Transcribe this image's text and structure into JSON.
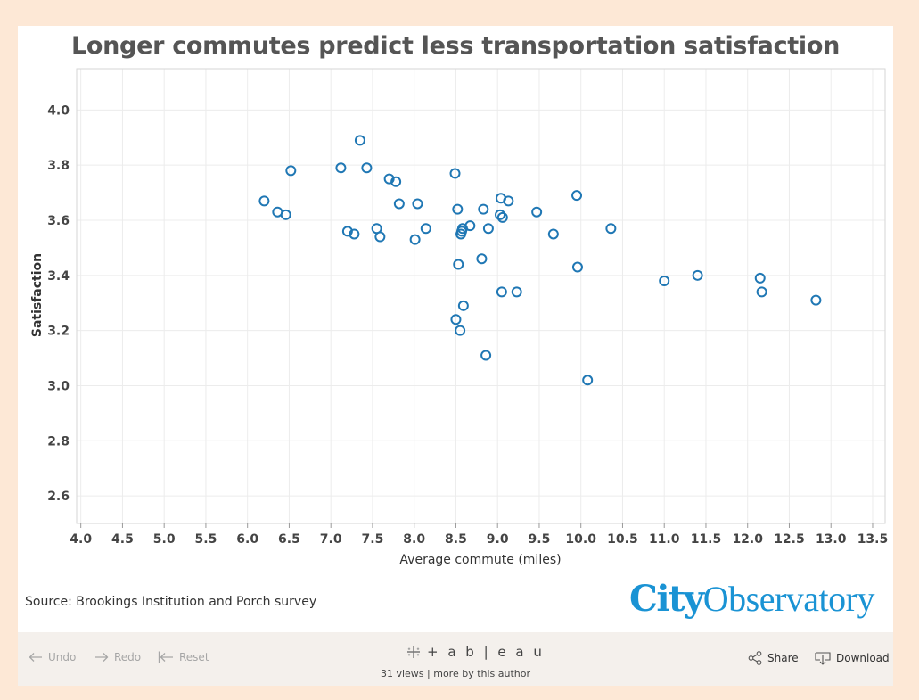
{
  "chart_data": {
    "type": "scatter",
    "title": "Longer commutes predict less transportation satisfaction",
    "xlabel": "Average commute (miles)",
    "ylabel": "Satisfaction",
    "xlim": [
      3.95,
      13.65
    ],
    "ylim": [
      2.5,
      4.15
    ],
    "x_ticks": [
      "4.0",
      "4.5",
      "5.0",
      "5.5",
      "6.0",
      "6.5",
      "7.0",
      "7.5",
      "8.0",
      "8.5",
      "9.0",
      "9.5",
      "10.0",
      "10.5",
      "11.0",
      "11.5",
      "12.0",
      "12.5",
      "13.0",
      "13.5"
    ],
    "y_ticks": [
      "4.0",
      "3.8",
      "3.6",
      "3.4",
      "3.2",
      "3.0",
      "2.8",
      "2.6"
    ],
    "grid": true,
    "marker_color": "#1f77b4",
    "points": [
      {
        "x": 6.2,
        "y": 3.67
      },
      {
        "x": 6.36,
        "y": 3.63
      },
      {
        "x": 6.46,
        "y": 3.62
      },
      {
        "x": 6.52,
        "y": 3.78
      },
      {
        "x": 7.12,
        "y": 3.79
      },
      {
        "x": 7.2,
        "y": 3.56
      },
      {
        "x": 7.28,
        "y": 3.55
      },
      {
        "x": 7.35,
        "y": 3.89
      },
      {
        "x": 7.43,
        "y": 3.79
      },
      {
        "x": 7.55,
        "y": 3.57
      },
      {
        "x": 7.59,
        "y": 3.54
      },
      {
        "x": 7.7,
        "y": 3.75
      },
      {
        "x": 7.78,
        "y": 3.74
      },
      {
        "x": 7.82,
        "y": 3.66
      },
      {
        "x": 8.01,
        "y": 3.53
      },
      {
        "x": 8.04,
        "y": 3.66
      },
      {
        "x": 8.14,
        "y": 3.57
      },
      {
        "x": 8.49,
        "y": 3.77
      },
      {
        "x": 8.5,
        "y": 3.24
      },
      {
        "x": 8.52,
        "y": 3.64
      },
      {
        "x": 8.53,
        "y": 3.44
      },
      {
        "x": 8.55,
        "y": 3.2
      },
      {
        "x": 8.56,
        "y": 3.55
      },
      {
        "x": 8.57,
        "y": 3.56
      },
      {
        "x": 8.58,
        "y": 3.57
      },
      {
        "x": 8.59,
        "y": 3.29
      },
      {
        "x": 8.67,
        "y": 3.58
      },
      {
        "x": 8.81,
        "y": 3.46
      },
      {
        "x": 8.83,
        "y": 3.64
      },
      {
        "x": 8.86,
        "y": 3.11
      },
      {
        "x": 8.89,
        "y": 3.57
      },
      {
        "x": 9.03,
        "y": 3.62
      },
      {
        "x": 9.04,
        "y": 3.68
      },
      {
        "x": 9.05,
        "y": 3.34
      },
      {
        "x": 9.06,
        "y": 3.61
      },
      {
        "x": 9.13,
        "y": 3.67
      },
      {
        "x": 9.23,
        "y": 3.34
      },
      {
        "x": 9.47,
        "y": 3.63
      },
      {
        "x": 9.67,
        "y": 3.55
      },
      {
        "x": 9.95,
        "y": 3.69
      },
      {
        "x": 9.96,
        "y": 3.43
      },
      {
        "x": 10.08,
        "y": 3.02
      },
      {
        "x": 10.36,
        "y": 3.57
      },
      {
        "x": 11.0,
        "y": 3.38
      },
      {
        "x": 11.4,
        "y": 3.4
      },
      {
        "x": 12.15,
        "y": 3.39
      },
      {
        "x": 12.17,
        "y": 3.34
      },
      {
        "x": 12.82,
        "y": 3.31
      }
    ]
  },
  "source": "Source: Brookings Institution and Porch survey",
  "logo": {
    "part1": "City",
    "part2": "Observatory"
  },
  "footer": {
    "undo": "Undo",
    "redo": "Redo",
    "reset": "Reset",
    "brand": "+ a b | e a u",
    "views": "31 views",
    "separator": "|",
    "more": "more by this author",
    "share": "Share",
    "download": "Download"
  }
}
